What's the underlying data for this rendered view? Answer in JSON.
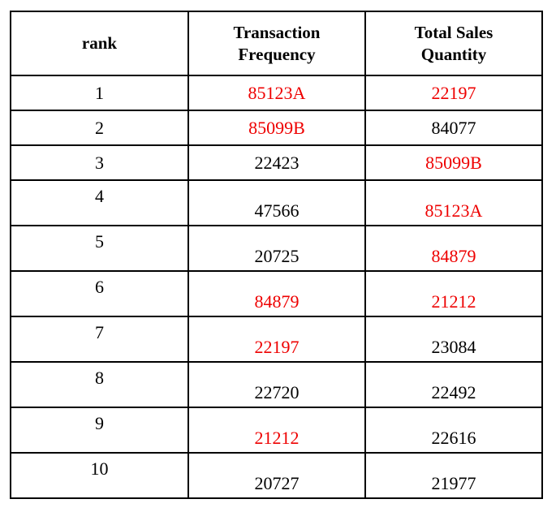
{
  "table": {
    "headers": {
      "rank": "rank",
      "freq_line1": "Transaction",
      "freq_line2": "Frequency",
      "qty_line1": "Total Sales",
      "qty_line2": "Quantity"
    },
    "highlight_color": "#ee0000",
    "rows": [
      {
        "rank": "1",
        "freq": "85123A",
        "freq_red": true,
        "qty": "22197",
        "qty_red": true
      },
      {
        "rank": "2",
        "freq": "85099B",
        "freq_red": true,
        "qty": "84077",
        "qty_red": false
      },
      {
        "rank": "3",
        "freq": "22423",
        "freq_red": false,
        "qty": "85099B",
        "qty_red": true
      },
      {
        "rank": "4",
        "freq": "47566",
        "freq_red": false,
        "qty": "85123A",
        "qty_red": true
      },
      {
        "rank": "5",
        "freq": "20725",
        "freq_red": false,
        "qty": "84879",
        "qty_red": true
      },
      {
        "rank": "6",
        "freq": "84879",
        "freq_red": true,
        "qty": "21212",
        "qty_red": true
      },
      {
        "rank": "7",
        "freq": "22197",
        "freq_red": true,
        "qty": "23084",
        "qty_red": false
      },
      {
        "rank": "8",
        "freq": "22720",
        "freq_red": false,
        "qty": "22492",
        "qty_red": false
      },
      {
        "rank": "9",
        "freq": "21212",
        "freq_red": true,
        "qty": "22616",
        "qty_red": false
      },
      {
        "rank": "10",
        "freq": "20727",
        "freq_red": false,
        "qty": "21977",
        "qty_red": false
      }
    ]
  }
}
